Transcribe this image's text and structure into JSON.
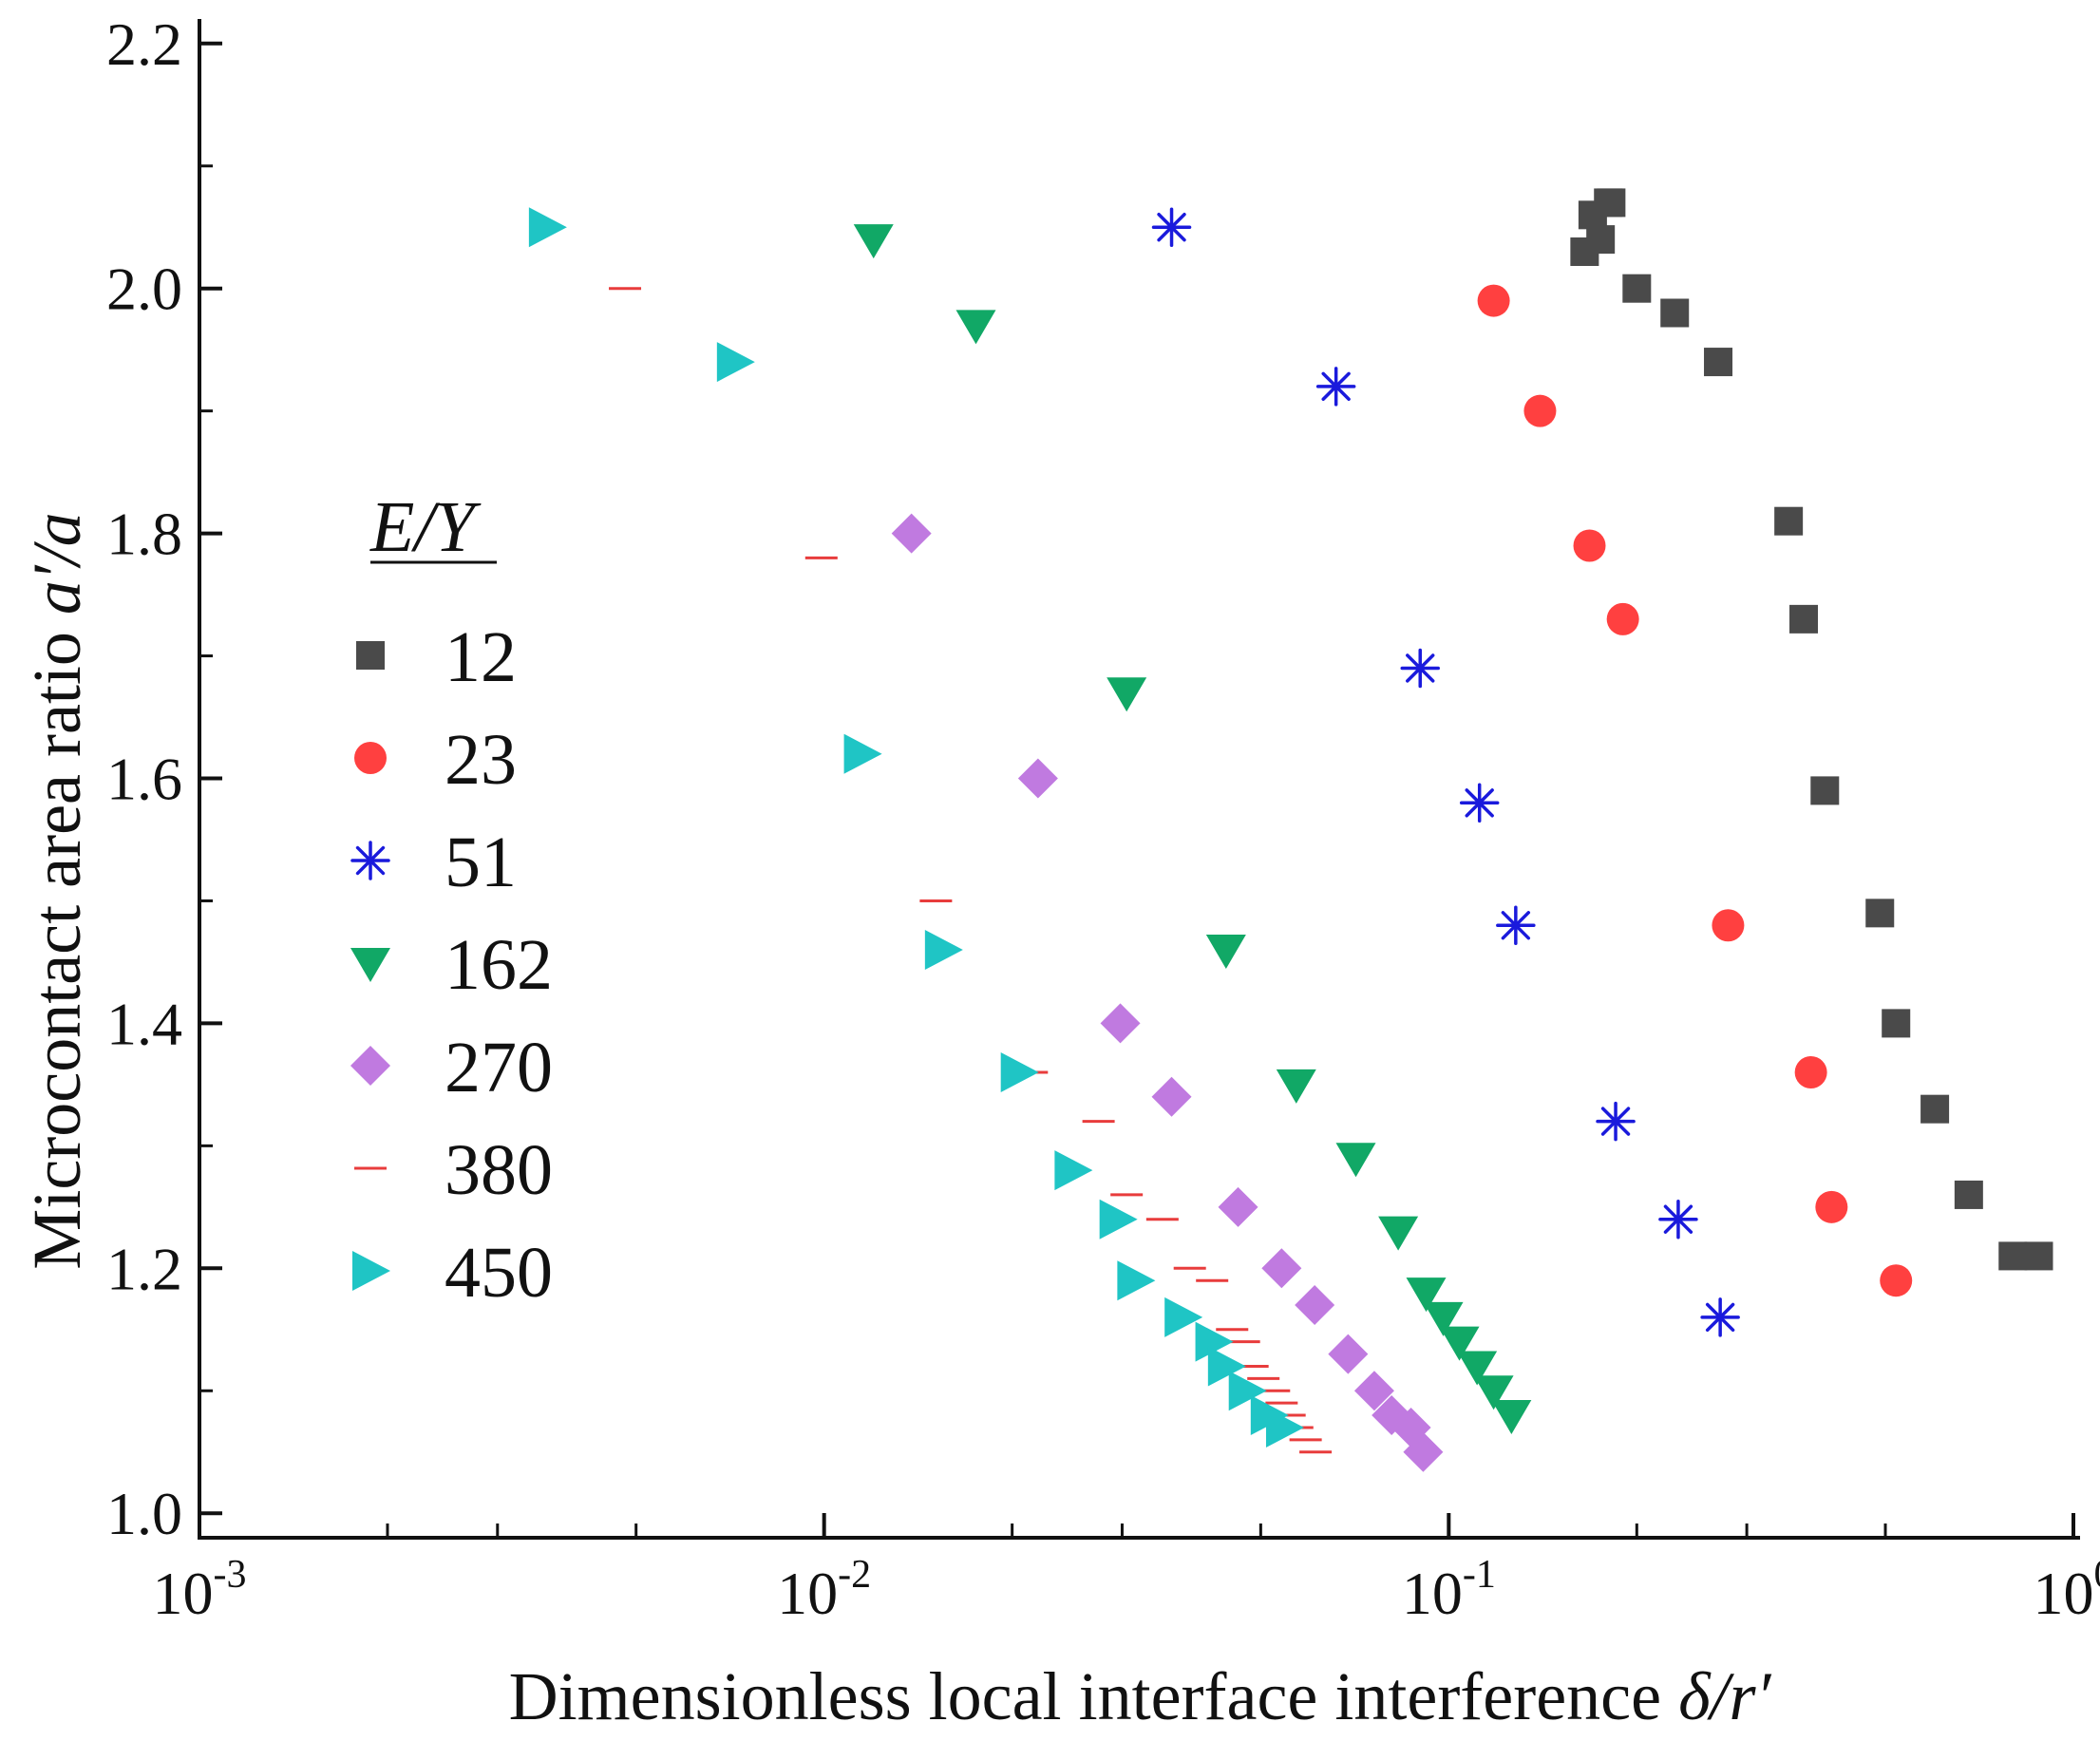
{
  "chart_data": {
    "type": "scatter",
    "title": "",
    "xlabel": "Dimensionless local interface interference",
    "xlabel_symbol": "δ/r′",
    "ylabel": "Microcontact area ratio",
    "ylabel_symbol": "a′/a",
    "xscale": "log",
    "xlim": [
      0.001,
      1
    ],
    "ylim": [
      0.98,
      2.22
    ],
    "x_ticks": [
      {
        "value": 0.001,
        "base": "10",
        "exp": "-3"
      },
      {
        "value": 0.01,
        "base": "10",
        "exp": "-2"
      },
      {
        "value": 0.1,
        "base": "10",
        "exp": "-1"
      },
      {
        "value": 1,
        "base": "10",
        "exp": "0"
      }
    ],
    "y_ticks": [
      {
        "value": 1.0,
        "label": "1.0"
      },
      {
        "value": 1.2,
        "label": "1.2"
      },
      {
        "value": 1.4,
        "label": "1.4"
      },
      {
        "value": 1.6,
        "label": "1.6"
      },
      {
        "value": 1.8,
        "label": "1.8"
      },
      {
        "value": 2.0,
        "label": "2.0"
      },
      {
        "value": 2.2,
        "label": "2.2"
      }
    ],
    "legend_title": "E/Y",
    "legend_position": "left",
    "series": [
      {
        "name": "12",
        "marker": "square",
        "color": "#4a4a4a",
        "x": [
          0.165,
          0.17,
          0.175,
          0.18,
          0.182,
          0.2,
          0.23,
          0.27,
          0.35,
          0.37,
          0.4,
          0.49,
          0.52,
          0.6,
          0.68,
          0.8,
          0.88
        ],
        "y": [
          2.03,
          2.06,
          2.04,
          2.07,
          2.07,
          2.0,
          1.98,
          1.94,
          1.81,
          1.73,
          1.59,
          1.49,
          1.4,
          1.33,
          1.26,
          1.21,
          1.21
        ]
      },
      {
        "name": "23",
        "marker": "circle",
        "color": "#ff4040",
        "x": [
          0.118,
          0.14,
          0.168,
          0.19,
          0.28,
          0.38,
          0.41,
          0.52
        ],
        "y": [
          1.99,
          1.9,
          1.79,
          1.73,
          1.48,
          1.36,
          1.25,
          1.19
        ]
      },
      {
        "name": "51",
        "marker": "asterisk",
        "color": "#1a1adc",
        "x": [
          0.036,
          0.066,
          0.09,
          0.112,
          0.128,
          0.185,
          0.233,
          0.272
        ],
        "y": [
          2.05,
          1.92,
          1.69,
          1.58,
          1.48,
          1.32,
          1.24,
          1.16
        ]
      },
      {
        "name": "162",
        "marker": "triangle-down",
        "color": "#11a866",
        "x": [
          0.012,
          0.0175,
          0.0305,
          0.044,
          0.057,
          0.071,
          0.083,
          0.092,
          0.098,
          0.104,
          0.111,
          0.118,
          0.126
        ],
        "y": [
          2.04,
          1.97,
          1.67,
          1.46,
          1.35,
          1.29,
          1.23,
          1.18,
          1.16,
          1.14,
          1.12,
          1.1,
          1.08
        ]
      },
      {
        "name": "270",
        "marker": "diamond",
        "color": "#c07ae0",
        "x": [
          0.0138,
          0.022,
          0.0298,
          0.036,
          0.046,
          0.054,
          0.061,
          0.069,
          0.076,
          0.081,
          0.087,
          0.091
        ],
        "y": [
          1.8,
          1.6,
          1.4,
          1.34,
          1.25,
          1.2,
          1.17,
          1.13,
          1.1,
          1.08,
          1.07,
          1.05
        ]
      },
      {
        "name": "380",
        "marker": "dash",
        "color": "#e83c3c",
        "x": [
          0.0048,
          0.0099,
          0.0151,
          0.0215,
          0.0275,
          0.0305,
          0.0348,
          0.0385,
          0.0418,
          0.045,
          0.047,
          0.0485,
          0.0505,
          0.0525,
          0.054,
          0.0556,
          0.0572,
          0.059,
          0.0612
        ],
        "y": [
          2.0,
          1.78,
          1.5,
          1.36,
          1.32,
          1.26,
          1.24,
          1.2,
          1.19,
          1.15,
          1.14,
          1.12,
          1.11,
          1.1,
          1.09,
          1.08,
          1.07,
          1.06,
          1.05
        ]
      },
      {
        "name": "450",
        "marker": "triangle-right",
        "color": "#1fc5c5",
        "x": [
          0.0036,
          0.0072,
          0.0115,
          0.0155,
          0.0205,
          0.025,
          0.0295,
          0.0315,
          0.0375,
          0.042,
          0.044,
          0.0475,
          0.0515,
          0.0545
        ],
        "y": [
          2.05,
          1.94,
          1.62,
          1.46,
          1.36,
          1.28,
          1.24,
          1.19,
          1.16,
          1.14,
          1.12,
          1.1,
          1.08,
          1.07
        ]
      }
    ]
  }
}
